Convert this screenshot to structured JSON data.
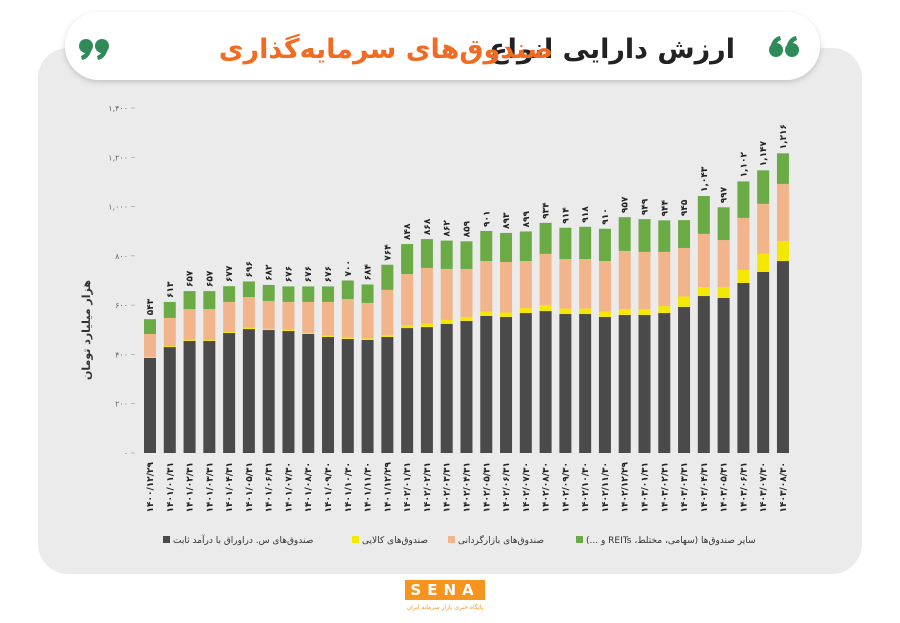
{
  "brand": {
    "logo": "SENA",
    "caption": "پایگاه خبری بازار سرمایه ایران"
  },
  "chart_data": {
    "type": "stacked-bar",
    "title": "ارزش دارایی انواع",
    "title_highlight": "صندوق‌های سرمایه‌گذاری",
    "y_label": "هزار میلیارد تومان",
    "categories": [
      "۱۴۰۰/۱۲/۲۹",
      "۱۴۰۱/۰۱/۳۱",
      "۱۴۰۱/۰۲/۳۱",
      "۱۴۰۱/۰۳/۳۱",
      "۱۴۰۱/۰۴/۳۱",
      "۱۴۰۱/۰۵/۳۱",
      "۱۴۰۱/۰۶/۳۱",
      "۱۴۰۱/۰۷/۳۰",
      "۱۴۰۱/۰۸/۳۰",
      "۱۴۰۱/۰۹/۳۰",
      "۱۴۰۱/۱۰/۳۰",
      "۱۴۰۱/۱۱/۳۰",
      "۱۴۰۱/۱۲/۲۹",
      "۱۴۰۲/۰۱/۳۱",
      "۱۴۰۲/۰۲/۳۱",
      "۱۴۰۲/۰۳/۳۱",
      "۱۴۰۲/۰۴/۳۱",
      "۱۴۰۲/۰۵/۳۱",
      "۱۴۰۲/۰۶/۳۱",
      "۱۴۰۲/۰۷/۳۰",
      "۱۴۰۲/۰۸/۳۰",
      "۱۴۰۲/۰۹/۳۰",
      "۱۴۰۲/۱۰/۳۰",
      "۱۴۰۲/۱۱/۳۰",
      "۱۴۰۲/۱۲/۲۹",
      "۱۴۰۳/۰۱/۳۱",
      "۱۴۰۳/۰۲/۳۱",
      "۱۴۰۳/۰۳/۳۱",
      "۱۴۰۳/۰۴/۳۱",
      "۱۴۰۳/۰۵/۳۱",
      "۱۴۰۳/۰۶/۳۱",
      "۱۴۰۳/۰۷/۳۰",
      "۱۴۰۳/۰۸/۳۰"
    ],
    "series": [
      {
        "name": "صندوق‌های س. دراوراق با درآمد ثابت",
        "color": "#4a4a4a",
        "values": [
          386,
          430,
          455,
          455,
          487,
          503,
          499,
          495,
          483,
          471,
          463,
          459,
          471,
          507,
          511,
          524,
          536,
          556,
          552,
          568,
          576,
          564,
          564,
          552,
          560,
          560,
          568,
          593,
          637,
          629,
          690,
          735,
          779
        ]
      },
      {
        "name": "صندوق‌های کالایی",
        "color": "#f5e800",
        "values": [
          4,
          4,
          4,
          4,
          4,
          5,
          5,
          5,
          5,
          5,
          5,
          6,
          8,
          12,
          14,
          16,
          16,
          18,
          18,
          20,
          24,
          22,
          22,
          22,
          24,
          24,
          28,
          42,
          36,
          45,
          53,
          73,
          81
        ]
      },
      {
        "name": "صندوق‌های بازارگردانی",
        "color": "#f2b48a",
        "values": [
          93,
          114,
          125,
          125,
          122,
          125,
          113,
          113,
          125,
          137,
          157,
          144,
          183,
          207,
          226,
          207,
          195,
          205,
          205,
          191,
          208,
          201,
          201,
          205,
          236,
          232,
          220,
          197,
          216,
          190,
          211,
          203,
          232
        ]
      },
      {
        "name": "سایر صندوق‌ها (سهامی، مختلط، REITs و ...)",
        "color": "#6aab46",
        "values": [
          60,
          65,
          73,
          73,
          64,
          63,
          65,
          63,
          63,
          63,
          75,
          75,
          102,
          122,
          117,
          115,
          112,
          122,
          118,
          120,
          126,
          127,
          131,
          131,
          137,
          133,
          128,
          113,
          154,
          133,
          148,
          136,
          124
        ]
      }
    ],
    "totals": {
      "values": [
        543,
        613,
        657,
        657,
        677,
        696,
        682,
        676,
        676,
        676,
        700,
        684,
        764,
        848,
        868,
        862,
        859,
        901,
        893,
        899,
        934,
        914,
        918,
        910,
        957,
        949,
        944,
        945,
        1043,
        997,
        1102,
        1147,
        1216
      ],
      "value_labels": [
        "۵۴۳",
        "۶۱۳",
        "۶۵۷",
        "۶۵۷",
        "۶۷۷",
        "۶۹۶",
        "۶۸۲",
        "۶۷۶",
        "۶۷۶",
        "۶۷۶",
        "۷۰۰",
        "۶۸۴",
        "۷۶۴",
        "۸۴۸",
        "۸۶۸",
        "۸۶۲",
        "۸۵۹",
        "۹۰۱",
        "۸۹۳",
        "۸۹۹",
        "۹۳۴",
        "۹۱۴",
        "۹۱۸",
        "۹۱۰",
        "۹۵۷",
        "۹۴۹",
        "۹۴۴",
        "۹۴۵",
        "۱,۰۴۳",
        "۹۹۷",
        "۱,۱۰۲",
        "۱,۱۴۷",
        "۱,۲۱۶"
      ]
    },
    "ylim": [
      0,
      1400
    ],
    "yticks": [
      {
        "value": 0,
        "label": "۰"
      },
      {
        "value": 200,
        "label": "۲۰۰"
      },
      {
        "value": 400,
        "label": "۴۰۰"
      },
      {
        "value": 600,
        "label": "۶۰۰"
      },
      {
        "value": 800,
        "label": "۸۰۰"
      },
      {
        "value": 1000,
        "label": "۱,۰۰۰"
      },
      {
        "value": 1200,
        "label": "۱,۲۰۰"
      },
      {
        "value": 1400,
        "label": "۱,۴۰۰"
      }
    ],
    "grid": false
  }
}
